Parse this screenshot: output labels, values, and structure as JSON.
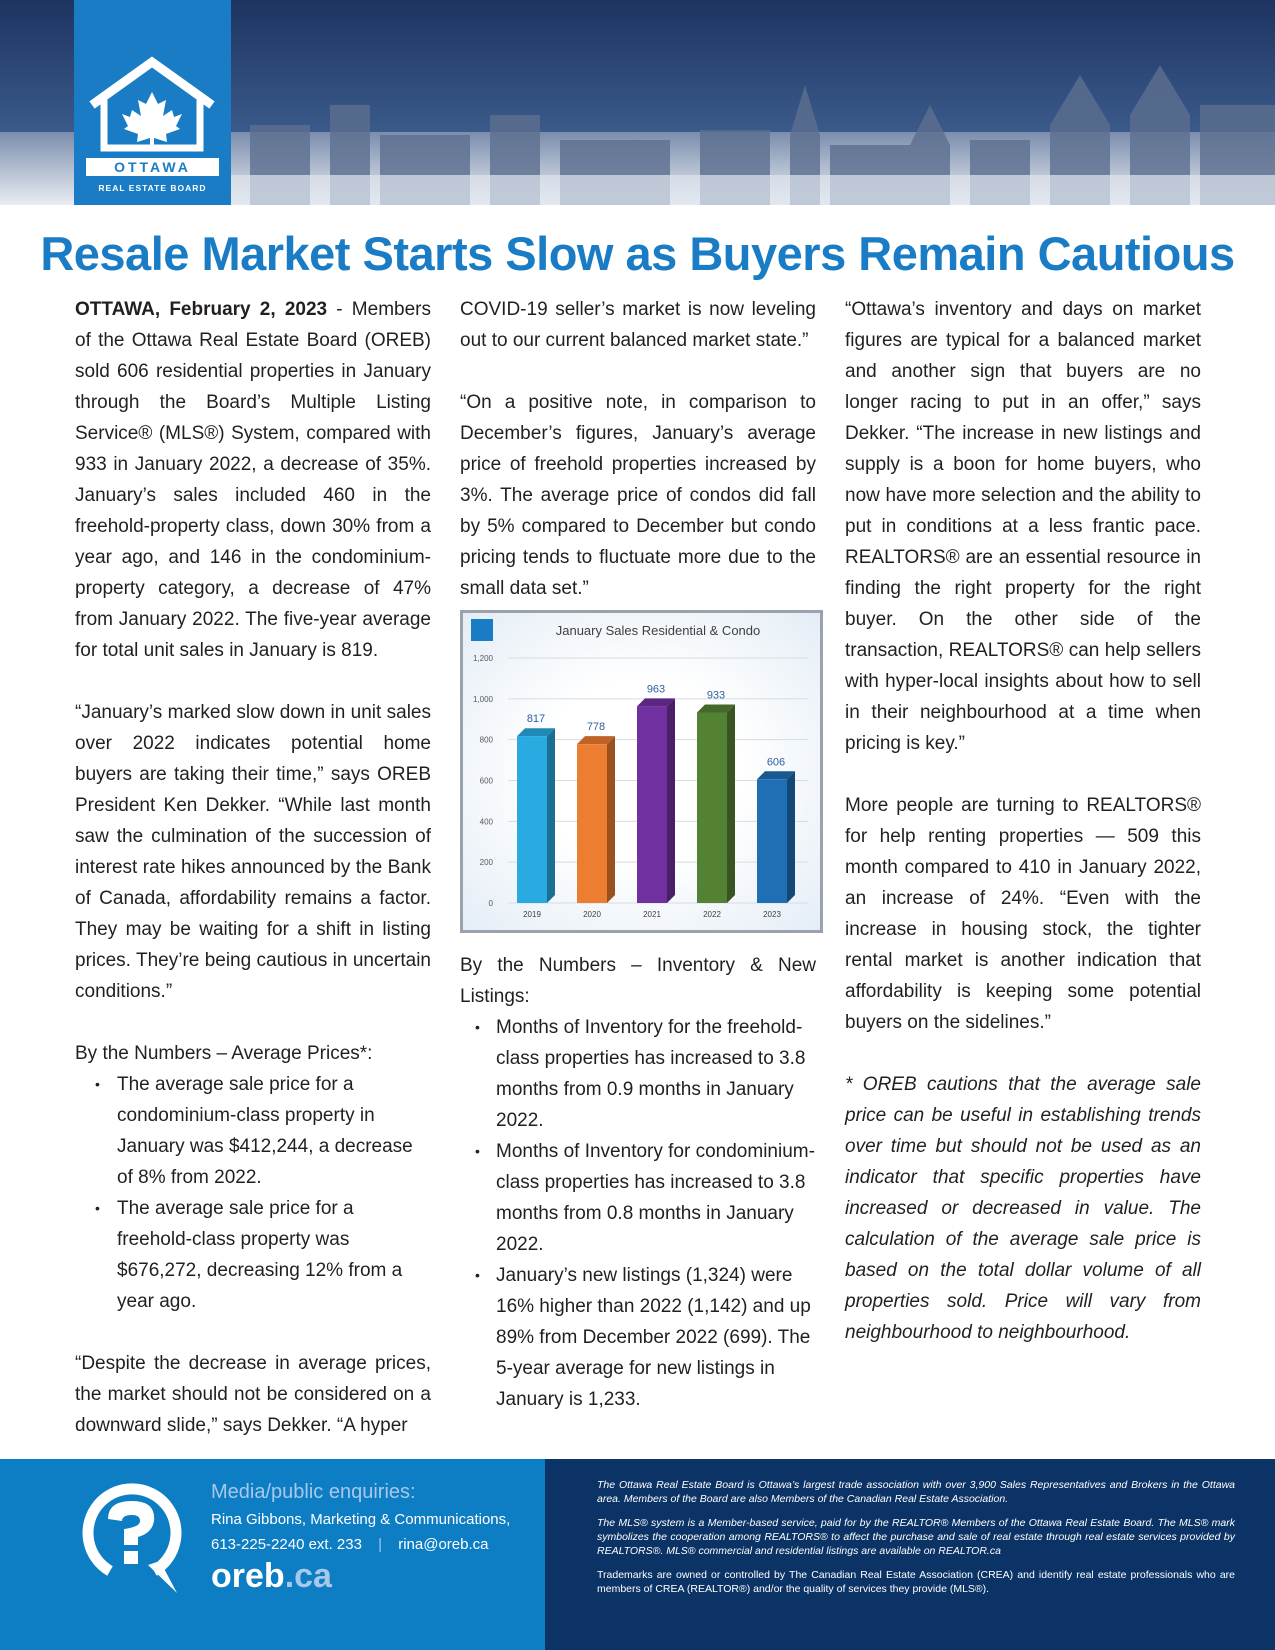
{
  "header": {
    "logo_text_1": "OTTAWA",
    "logo_text_2": "REAL ESTATE BOARD"
  },
  "title": "Resale Market Starts Slow as Buyers Remain Cautious",
  "col1": {
    "dateline": "OTTAWA, February 2, 2023",
    "p1": " - Members of the Ottawa Real Estate Board (OREB) sold 606 residential properties in January through the Board’s Multiple Listing Service® (MLS®) System, compared with 933 in January 2022, a decrease of 35%. January’s sales included 460 in the freehold-property class, down 30% from a year ago, and 146 in the condominium-property category, a decrease of 47% from January 2022. The five-year average for total unit sales in January is 819.",
    "p2": "“January’s marked slow down in unit sales over 2022 indicates potential home buyers are taking their time,” says OREB President Ken Dekker. “While last month saw the culmination of the succession of interest rate hikes announced by the Bank of Canada, affordability remains a factor. They may be waiting for a shift in listing prices. They’re being cautious in uncertain conditions.”",
    "list_title": "By the Numbers – Average Prices*:",
    "bullets": [
      "The average sale price for a condominium-class property in January was $412,244, a decrease of 8% from 2022.",
      "The average sale price for a freehold-class property was $676,272, decreasing 12% from a year ago."
    ],
    "p3": "“Despite the decrease in average prices, the market should not be considered on a downward slide,” says Dekker. “A hyper"
  },
  "col2": {
    "p1": "COVID-19 seller’s market is now leveling out to our current balanced market state.”",
    "p2": "“On a positive note, in comparison to December’s figures, January’s average price of freehold properties increased by 3%. The average price of condos did fall by 5% compared to December but condo pricing tends to fluctuate more due to the small data set.”",
    "list_title": "By the Numbers – Inventory & New Listings:",
    "bullets": [
      "Months of Inventory for the freehold-class properties has increased to 3.8 months from 0.9 months in January 2022.",
      "Months of Inventory for condominium-class properties has increased to 3.8 months from 0.8 months in January 2022.",
      "January’s new listings (1,324) were 16% higher than 2022 (1,142) and up 89% from December 2022 (699). The 5-year average for new listings in January is 1,233."
    ]
  },
  "col3": {
    "p1": "“Ottawa’s inventory and days on market figures are typical for a balanced market and another sign that buyers are no longer racing to put in an offer,” says Dekker. “The increase in new listings and supply is a boon for home buyers, who now have more selection and the ability to put in conditions at a less frantic pace. REALTORS® are an essential resource in finding the right property for the right buyer. On the other side of the transaction, REALTORS® can help sellers with hyper-local insights about how to sell in their neighbourhood at a time when pricing is key.”",
    "p2": "More people are turning to REALTORS® for help renting properties — 509 this month compared to 410 in January 2022, an increase of 24%. “Even with the increase in housing stock, the tighter rental market is another indication that affordability is keeping some potential buyers on the sidelines.”",
    "note": "* OREB cautions that the average sale price can be useful in establishing trends over time but should not be used as an indicator that specific properties have increased or decreased in value. The calculation of the average sale price is based on the total dollar volume of all properties sold. Price will vary from neighbourhood to neighbourhood."
  },
  "chart_data": {
    "type": "bar",
    "title": "January Sales Residential & Condo",
    "categories": [
      "2019",
      "2020",
      "2021",
      "2022",
      "2023"
    ],
    "values": [
      817,
      778,
      963,
      933,
      606
    ],
    "colors": [
      "#29abe2",
      "#ed7d31",
      "#7030a0",
      "#548235",
      "#1f6fb5"
    ],
    "yticks": [
      "0",
      "200",
      "400",
      "600",
      "800",
      "1,000",
      "1,200"
    ],
    "ylim": [
      0,
      1200
    ],
    "grid": true
  },
  "footer": {
    "heading": "Media/public enquiries:",
    "contact": "Rina Gibbons, Marketing & Communications,",
    "phone": "613-225-2240 ext. 233",
    "sep": "|",
    "email": "rina@oreb.ca",
    "site_main": "oreb",
    "site_tld": ".ca",
    "legal": [
      "The Ottawa Real Estate Board is Ottawa’s largest trade association with over 3,900 Sales Representatives and Brokers in the Ottawa area. Members of the Board are also Members of the Canadian Real Estate Association.",
      "The MLS® system is a Member-based service, paid for by the REALTOR® Members of the Ottawa Real Estate Board. The MLS® mark symbolizes the cooperation among REALTORS® to affect the purchase and sale of real estate through real estate services provided by REALTORS®. MLS® commercial and residential listings are available on REALTOR.ca",
      "Trademarks are owned or controlled by The Canadian Real Estate Association (CREA) and identify real estate professionals who are members of CREA (REALTOR®) and/or the quality of services they provide (MLS®)."
    ]
  }
}
